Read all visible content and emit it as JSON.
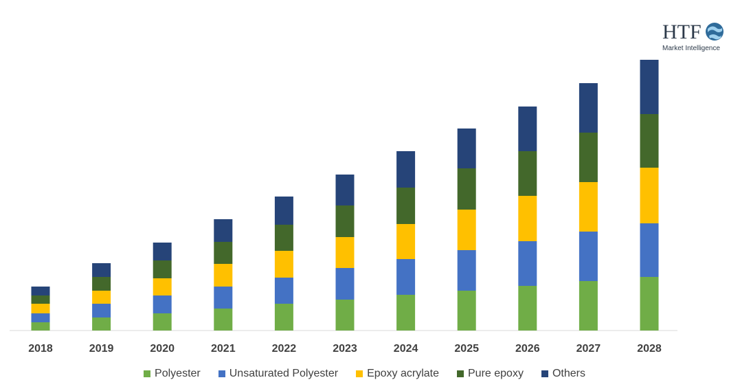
{
  "logo": {
    "mark": "HTF",
    "subtitle": "Market Intelligence",
    "icon": "globe-icon"
  },
  "chart_data": {
    "type": "bar",
    "stacked": true,
    "categories": [
      "2018",
      "2019",
      "2020",
      "2021",
      "2022",
      "2023",
      "2024",
      "2025",
      "2026",
      "2027",
      "2028"
    ],
    "series": [
      {
        "name": "Polyester",
        "color": "#70ad47",
        "values": [
          12,
          19,
          25,
          32,
          39,
          45,
          52,
          58,
          65,
          72,
          78
        ]
      },
      {
        "name": "Unsaturated Polyester",
        "color": "#4472c4",
        "values": [
          13,
          20,
          26,
          32,
          38,
          46,
          52,
          59,
          65,
          72,
          78
        ]
      },
      {
        "name": "Epoxy acrylate",
        "color": "#ffc000",
        "values": [
          14,
          19,
          25,
          33,
          39,
          45,
          51,
          59,
          66,
          72,
          81
        ]
      },
      {
        "name": "Pure epoxy",
        "color": "#43682b",
        "values": [
          12,
          20,
          26,
          32,
          38,
          46,
          53,
          60,
          65,
          72,
          78
        ]
      },
      {
        "name": "Others",
        "color": "#264478",
        "values": [
          13,
          20,
          26,
          33,
          41,
          45,
          53,
          58,
          65,
          72,
          79
        ]
      }
    ],
    "ylim": [
      0,
      400
    ],
    "grid": false,
    "legend": "bottom",
    "title": "",
    "xlabel": "",
    "ylabel": ""
  }
}
